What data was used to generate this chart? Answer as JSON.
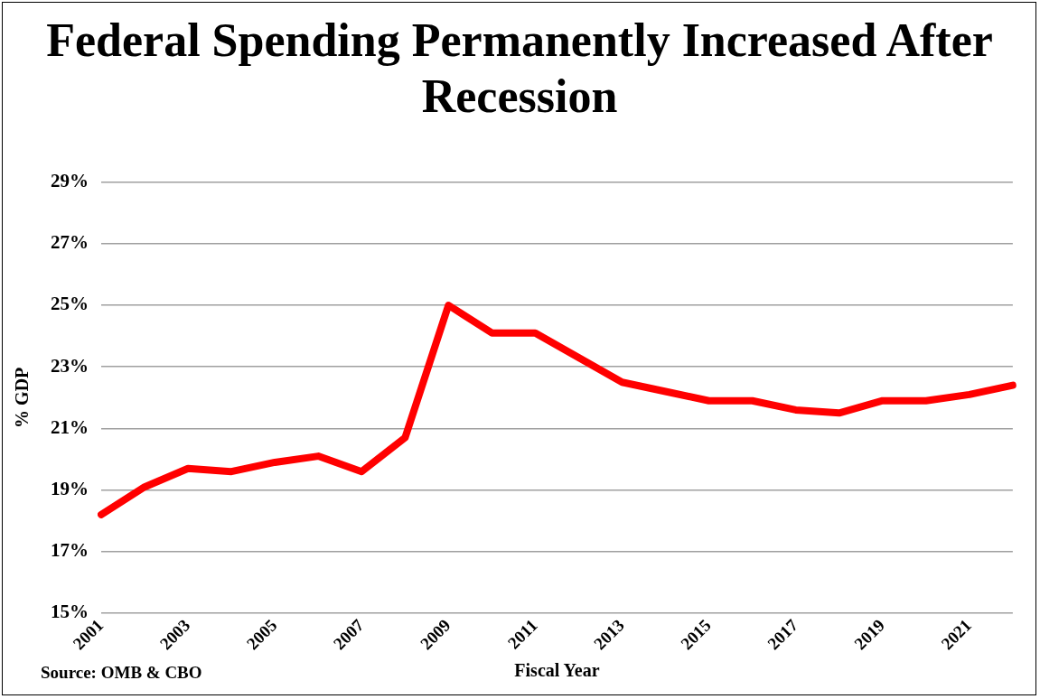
{
  "chart_data": {
    "type": "line",
    "title": "Federal Spending Permanently Increased After Recession",
    "xlabel": "Fiscal Year",
    "ylabel": "% GDP",
    "categories": [
      "2001",
      null,
      "2003",
      null,
      "2005",
      null,
      "2007",
      null,
      "2009",
      null,
      "2011",
      null,
      "2013",
      null,
      "2015",
      null,
      "2017",
      null,
      "2019",
      null,
      "2021",
      null
    ],
    "series": [
      {
        "color": "#ff0000",
        "values": [
          18.2,
          19.1,
          19.7,
          19.6,
          19.9,
          20.1,
          19.6,
          20.7,
          25.0,
          24.1,
          24.1,
          23.3,
          22.5,
          22.2,
          21.9,
          21.9,
          21.6,
          21.5,
          21.9,
          21.9,
          22.1,
          22.4
        ]
      }
    ],
    "ylim": [
      15,
      29
    ],
    "yticks": [
      {
        "value": 15,
        "label": "15%"
      },
      {
        "value": 17,
        "label": "17%"
      },
      {
        "value": 19,
        "label": "19%"
      },
      {
        "value": 21,
        "label": "21%"
      },
      {
        "value": 23,
        "label": "23%"
      },
      {
        "value": 25,
        "label": "25%"
      },
      {
        "value": 27,
        "label": "27%"
      },
      {
        "value": 29,
        "label": "29%"
      }
    ],
    "grid": "y",
    "marker": "none",
    "line_style": "solid",
    "legend": false,
    "annotations": [
      "Source: OMB & CBO"
    ]
  }
}
